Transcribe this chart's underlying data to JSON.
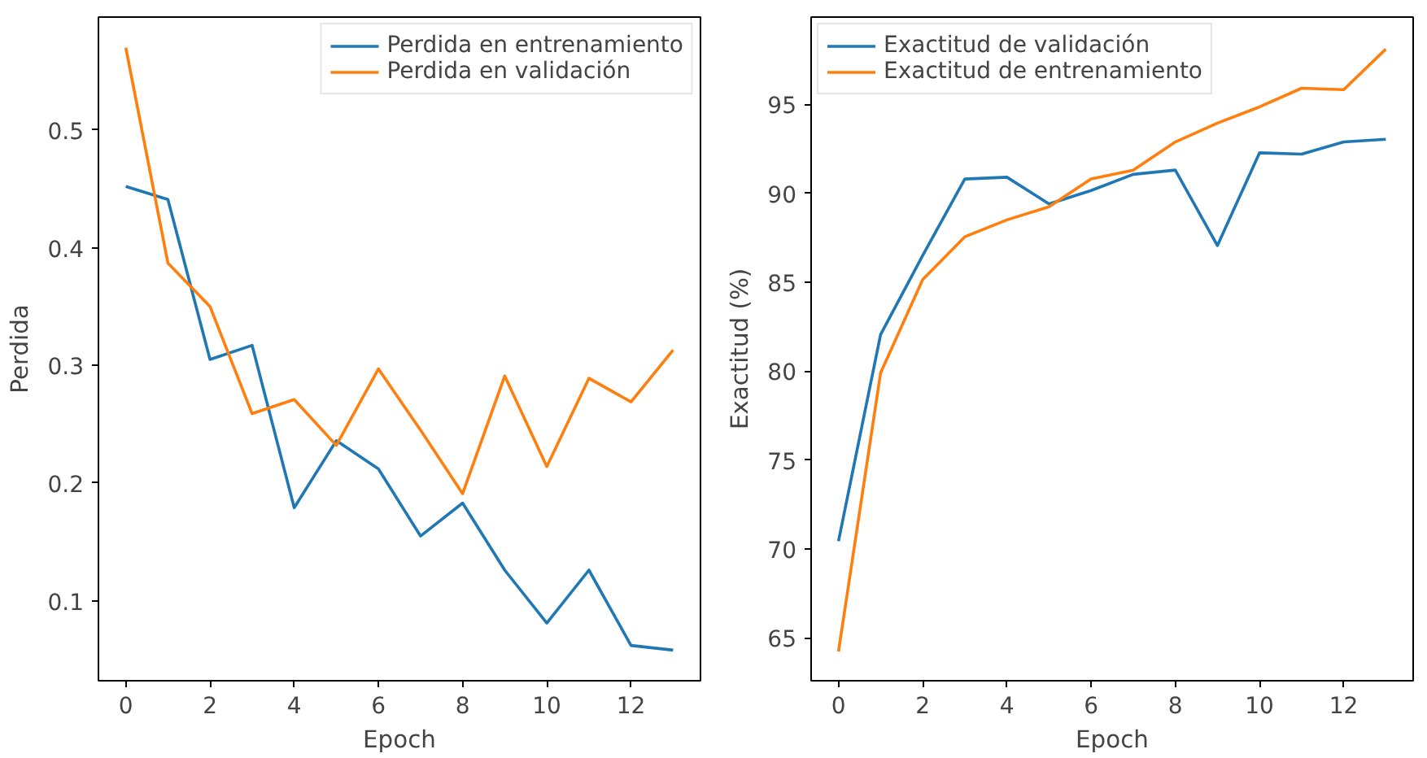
{
  "chart_data": [
    {
      "type": "line",
      "xlabel": "Epoch",
      "ylabel": "Perdida",
      "x": [
        0,
        1,
        2,
        3,
        4,
        5,
        6,
        7,
        8,
        9,
        10,
        11,
        12,
        13
      ],
      "xlim": [
        -0.65,
        13.65
      ],
      "xticks": [
        0,
        2,
        4,
        6,
        8,
        10,
        12
      ],
      "ylim": [
        0.032,
        0.596
      ],
      "yticks": [
        0.1,
        0.2,
        0.3,
        0.4,
        0.5
      ],
      "grid": false,
      "legend": "top right",
      "series": [
        {
          "name": "Perdida en entrenamiento",
          "color": "#1f77b4",
          "values": [
            0.452,
            0.441,
            0.305,
            0.317,
            0.179,
            0.236,
            0.212,
            0.155,
            0.183,
            0.126,
            0.081,
            0.126,
            0.062,
            0.058
          ]
        },
        {
          "name": "Perdida en validación",
          "color": "#ff7f0e",
          "values": [
            0.57,
            0.387,
            0.35,
            0.259,
            0.271,
            0.232,
            0.297,
            0.245,
            0.191,
            0.291,
            0.214,
            0.289,
            0.269,
            0.313
          ]
        }
      ]
    },
    {
      "type": "line",
      "xlabel": "Epoch",
      "ylabel": "Exactitud (%)",
      "x": [
        0,
        1,
        2,
        3,
        4,
        5,
        6,
        7,
        8,
        9,
        10,
        11,
        12,
        13
      ],
      "xlim": [
        -0.65,
        13.65
      ],
      "xticks": [
        0,
        2,
        4,
        6,
        8,
        10,
        12
      ],
      "ylim": [
        62.6,
        99.9
      ],
      "yticks": [
        65,
        70,
        75,
        80,
        85,
        90,
        95
      ],
      "grid": false,
      "legend": "top left",
      "series": [
        {
          "name": "Exactitud de validación",
          "color": "#1f77b4",
          "values": [
            70.45,
            82.06,
            86.5,
            90.8,
            90.9,
            89.4,
            90.15,
            91.06,
            91.3,
            87.06,
            92.27,
            92.2,
            92.88,
            93.03
          ]
        },
        {
          "name": "Exactitud de entrenamiento",
          "color": "#ff7f0e",
          "values": [
            64.24,
            79.9,
            85.15,
            87.55,
            88.5,
            89.24,
            90.8,
            91.3,
            92.88,
            93.94,
            94.85,
            95.9,
            95.82,
            98.1
          ]
        }
      ]
    }
  ]
}
